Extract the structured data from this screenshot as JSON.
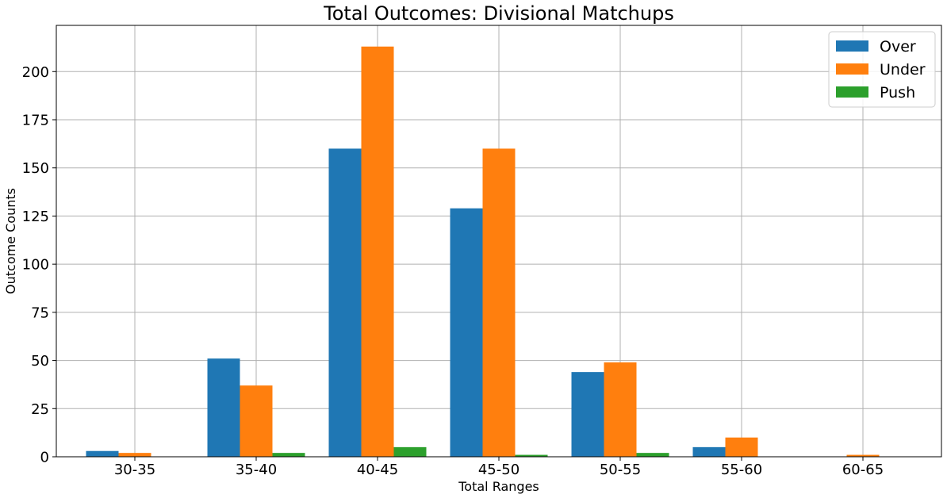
{
  "chart_data": {
    "type": "bar",
    "title": "Total Outcomes: Divisional Matchups",
    "xlabel": "Total Ranges",
    "ylabel": "Outcome Counts",
    "categories": [
      "30-35",
      "35-40",
      "40-45",
      "45-50",
      "50-55",
      "55-60",
      "60-65"
    ],
    "series": [
      {
        "name": "Over",
        "color": "#1f77b4",
        "values": [
          3,
          51,
          160,
          129,
          44,
          5,
          0
        ]
      },
      {
        "name": "Under",
        "color": "#ff7f0e",
        "values": [
          2,
          37,
          213,
          160,
          49,
          10,
          1
        ]
      },
      {
        "name": "Push",
        "color": "#2ca02c",
        "values": [
          0,
          2,
          5,
          1,
          2,
          0,
          0
        ]
      }
    ],
    "ylim": [
      0,
      224
    ],
    "yticks": [
      0,
      25,
      50,
      75,
      100,
      125,
      150,
      175,
      200
    ],
    "grid": true,
    "legend_position": "top-right"
  }
}
